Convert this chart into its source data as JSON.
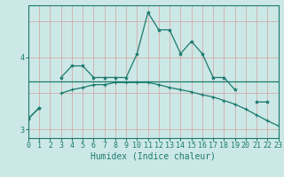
{
  "x": [
    0,
    1,
    2,
    3,
    4,
    5,
    6,
    7,
    8,
    9,
    10,
    11,
    12,
    13,
    14,
    15,
    16,
    17,
    18,
    19,
    20,
    21,
    22,
    23
  ],
  "line1": [
    3.15,
    3.3,
    null,
    3.72,
    3.88,
    3.88,
    3.72,
    3.72,
    3.72,
    3.72,
    4.05,
    4.62,
    4.38,
    4.38,
    4.05,
    4.22,
    4.05,
    3.72,
    3.72,
    3.55,
    null,
    3.38,
    3.38,
    null
  ],
  "line2": [
    3.67,
    3.67,
    3.67,
    3.67,
    3.67,
    3.67,
    3.67,
    3.67,
    3.67,
    3.67,
    3.67,
    3.67,
    3.67,
    3.67,
    3.67,
    3.67,
    3.67,
    3.67,
    3.67,
    3.67,
    3.67,
    3.67,
    3.67,
    3.67
  ],
  "line3": [
    3.15,
    3.3,
    null,
    3.5,
    3.55,
    3.58,
    3.62,
    3.62,
    3.65,
    3.65,
    3.65,
    3.65,
    3.62,
    3.58,
    3.55,
    3.52,
    3.48,
    3.45,
    3.4,
    3.35,
    3.28,
    3.2,
    3.12,
    3.05
  ],
  "bg_color": "#cce8e6",
  "line_color": "#1a7a6e",
  "vgrid_color": "#d4a0a0",
  "hgrid_color": "#d4a0a0",
  "xlim": [
    0,
    23
  ],
  "ylim": [
    2.88,
    4.72
  ],
  "yticks": [
    3,
    4
  ],
  "xlabel": "Humidex (Indice chaleur)",
  "xlabel_fontsize": 7,
  "tick_fontsize": 6
}
